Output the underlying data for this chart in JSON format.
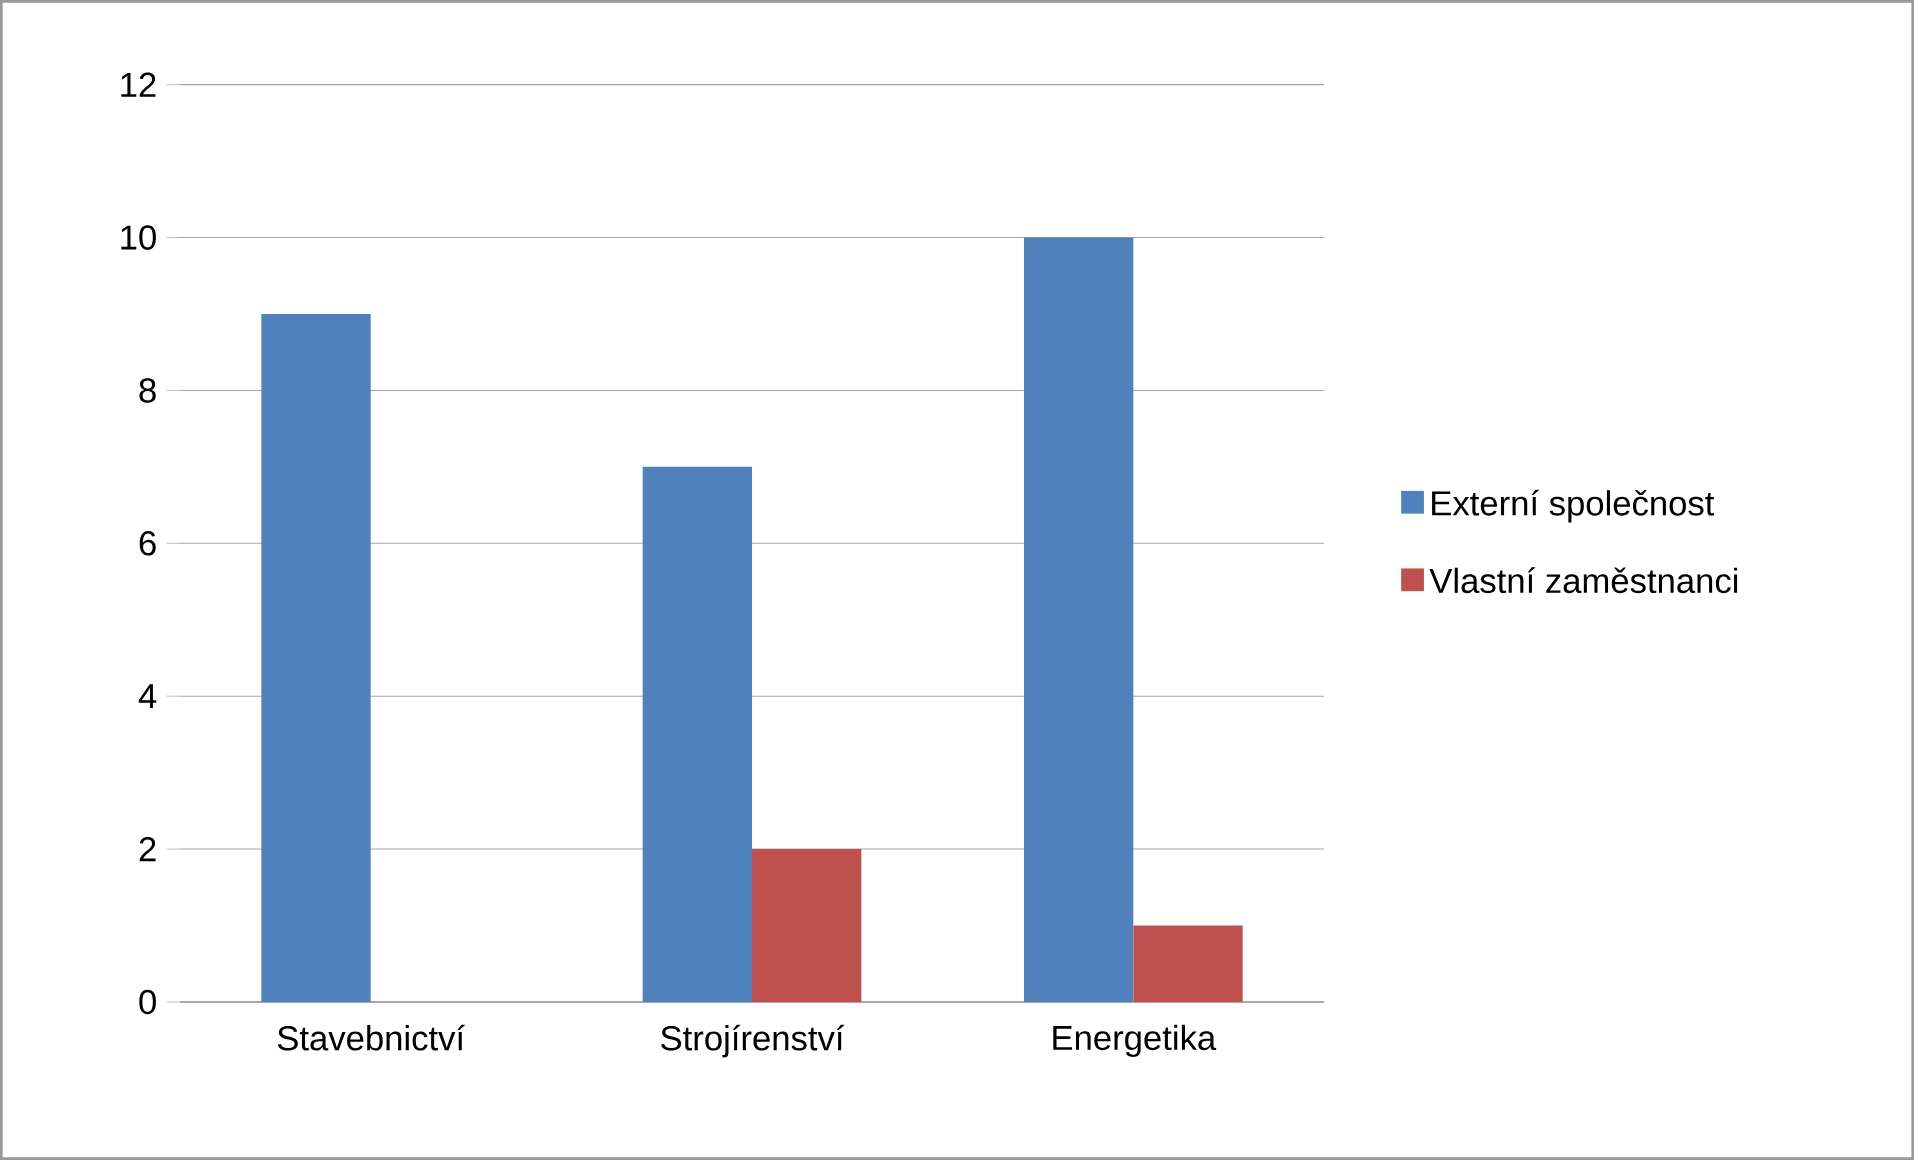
{
  "chart_data": {
    "type": "bar",
    "categories": [
      "Stavebnictví",
      "Strojírenství",
      "Energetika"
    ],
    "series": [
      {
        "name": "Externí společnost",
        "color": "#4f81bd",
        "values": [
          9,
          7,
          10
        ]
      },
      {
        "name": "Vlastní zaměstnanci",
        "color": "#c0504d",
        "values": [
          0,
          2,
          1
        ]
      }
    ],
    "ylim": [
      0,
      12
    ],
    "yticks": [
      0,
      2,
      4,
      6,
      8,
      10,
      12
    ],
    "grid": "y",
    "legend": "right"
  }
}
